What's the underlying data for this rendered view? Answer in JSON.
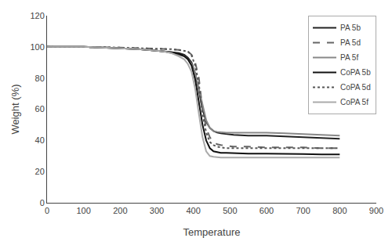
{
  "chart_data": {
    "type": "line",
    "xlabel": "Temperature",
    "ylabel": "Weight (%)",
    "xlim": [
      0,
      900
    ],
    "ylim": [
      0,
      120
    ],
    "xticks": [
      0,
      100,
      200,
      300,
      400,
      500,
      600,
      700,
      800,
      900
    ],
    "yticks": [
      0,
      20,
      40,
      60,
      80,
      100,
      120
    ],
    "grid": false,
    "legend": "upper right",
    "x": [
      0,
      100,
      150,
      200,
      250,
      300,
      320,
      340,
      360,
      375,
      385,
      395,
      405,
      415,
      425,
      435,
      445,
      455,
      465,
      475,
      490,
      510,
      550,
      600,
      650,
      700,
      750,
      800
    ],
    "series": [
      {
        "name": "PA 5b",
        "color": "#222222",
        "line_style": "solid",
        "values": [
          100,
          100,
          99.5,
          99,
          98.5,
          97.5,
          97,
          96.5,
          96,
          95,
          93,
          90,
          83,
          72,
          60,
          52,
          48,
          46,
          45,
          44.5,
          44,
          43.5,
          43,
          43,
          42.5,
          42,
          41.5,
          41
        ]
      },
      {
        "name": "PA 5d",
        "color": "#666666",
        "line_style": "dashed",
        "values": [
          100,
          100,
          99.8,
          99.5,
          99.2,
          99,
          98.8,
          98.5,
          98,
          97.5,
          97,
          95,
          90,
          80,
          60,
          48,
          42,
          39,
          37.5,
          37,
          36.5,
          36,
          36,
          35.5,
          35.5,
          35.5,
          35,
          35
        ]
      },
      {
        "name": "PA 5f",
        "color": "#888888",
        "line_style": "solid",
        "values": [
          100,
          100,
          99.5,
          99,
          98.5,
          97.5,
          97,
          96,
          95,
          94,
          92,
          89,
          83,
          73,
          62,
          53,
          48,
          46,
          45.5,
          45.2,
          45,
          45,
          45,
          45,
          44.5,
          44,
          43.5,
          43
        ]
      },
      {
        "name": "CoPA 5b",
        "color": "#111111",
        "line_style": "solid",
        "values": [
          100,
          100,
          99.5,
          99,
          98.5,
          97.5,
          97,
          96.5,
          95.5,
          94,
          92,
          88,
          79,
          65,
          50,
          40,
          35,
          33,
          32.5,
          32,
          32,
          31.8,
          31.5,
          31.5,
          31.5,
          31.2,
          31,
          31
        ]
      },
      {
        "name": "CoPA 5d",
        "color": "#555555",
        "line_style": "dotted",
        "values": [
          100,
          100,
          99.8,
          99.5,
          99.2,
          99,
          98.8,
          98.5,
          98,
          97.5,
          97,
          94.5,
          88,
          76,
          57,
          45,
          39,
          37,
          36,
          35.5,
          35,
          35,
          35,
          35,
          35,
          35,
          35,
          35
        ]
      },
      {
        "name": "CoPA 5f",
        "color": "#aaaaaa",
        "line_style": "solid",
        "values": [
          100,
          100,
          99.5,
          99,
          98.5,
          97.5,
          97,
          96,
          94,
          92,
          89,
          84,
          73,
          57,
          42,
          33,
          30,
          29.5,
          29.2,
          29,
          29,
          29,
          29,
          29,
          29,
          29,
          29,
          29
        ]
      }
    ]
  }
}
